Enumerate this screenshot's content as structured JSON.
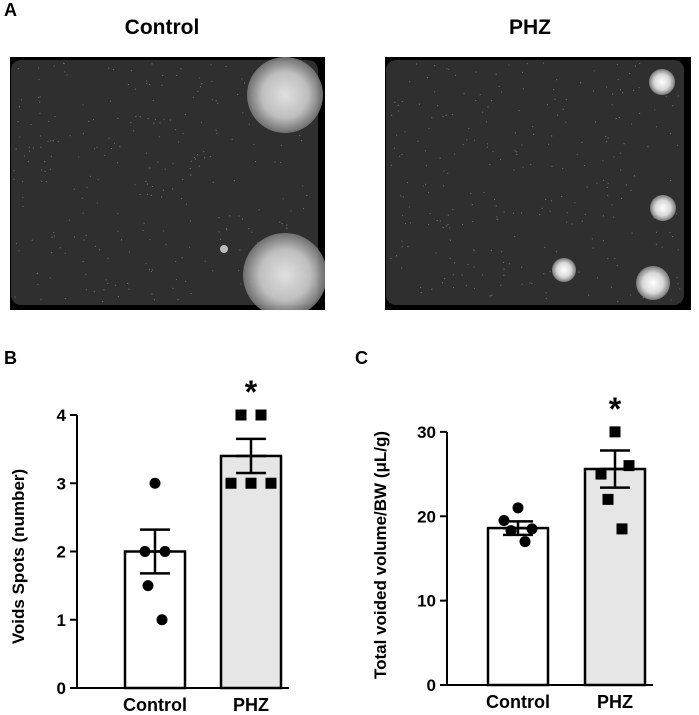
{
  "panel_a": {
    "letter": "A",
    "photos": [
      {
        "title": "Control",
        "spots": [
          {
            "cx": 285,
            "cy": 95,
            "r": 38,
            "kind": "corner"
          },
          {
            "cx": 285,
            "cy": 275,
            "r": 42,
            "kind": "corner"
          },
          {
            "cx": 224,
            "cy": 249,
            "r": 4,
            "kind": "dot"
          }
        ]
      },
      {
        "title": "PHZ",
        "spots": [
          {
            "cx": 662,
            "cy": 82,
            "r": 13,
            "kind": "spot"
          },
          {
            "cx": 663,
            "cy": 208,
            "r": 13,
            "kind": "spot"
          },
          {
            "cx": 564,
            "cy": 270,
            "r": 12,
            "kind": "spot"
          },
          {
            "cx": 653,
            "cy": 283,
            "r": 17,
            "kind": "spot"
          }
        ]
      }
    ]
  },
  "chart_data": [
    {
      "letter": "B",
      "type": "bar",
      "categories": [
        "Control",
        "PHZ"
      ],
      "values": [
        2.0,
        3.4
      ],
      "errors": [
        0.32,
        0.25
      ],
      "points": [
        [
          3,
          2,
          2,
          1.5,
          1
        ],
        [
          4,
          4,
          3,
          3,
          3
        ]
      ],
      "markers": [
        "circle",
        "square"
      ],
      "fills": [
        "#ffffff",
        "#e6e6e6"
      ],
      "significance": [
        "",
        "*"
      ],
      "ylabel": "Voids Spots (number)",
      "ylim": [
        0,
        4
      ],
      "yticks": [
        "0",
        "1",
        "2",
        "3",
        "4"
      ],
      "ytick_values": [
        0,
        1,
        2,
        3,
        4
      ]
    },
    {
      "letter": "C",
      "type": "bar",
      "categories": [
        "Control",
        "PHZ"
      ],
      "values": [
        18.6,
        25.6
      ],
      "errors": [
        0.8,
        2.2
      ],
      "points": [
        [
          21,
          19.5,
          18.5,
          18.3,
          17
        ],
        [
          30,
          25,
          26,
          22,
          18.5
        ]
      ],
      "markers": [
        "circle",
        "square"
      ],
      "fills": [
        "#ffffff",
        "#e6e6e6"
      ],
      "significance": [
        "",
        "*"
      ],
      "ylabel": "Total voided volume/BW (μL/g)",
      "ylim": [
        0,
        32
      ],
      "yticks": [
        "0",
        "10",
        "20",
        "30"
      ],
      "ytick_values": [
        0,
        10,
        20,
        30
      ]
    }
  ]
}
